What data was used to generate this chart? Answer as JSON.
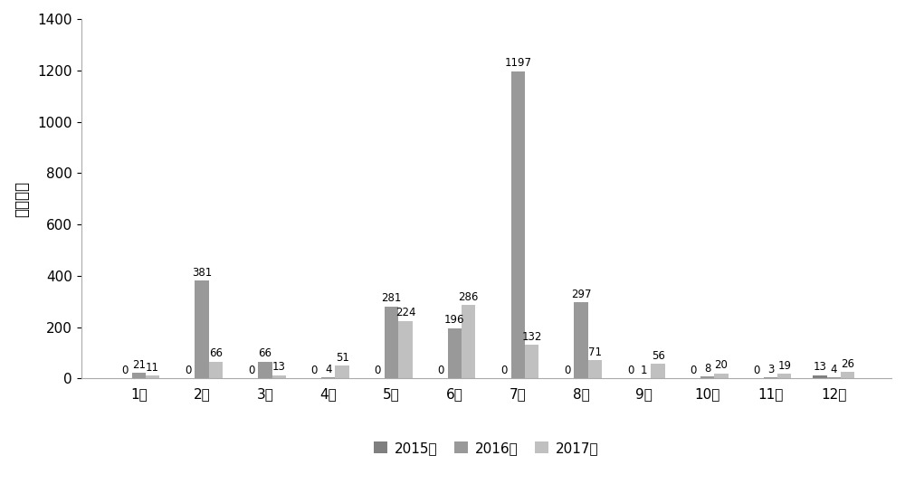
{
  "months": [
    "1月",
    "2月",
    "3月",
    "4月",
    "5月",
    "6月",
    "7月",
    "8月",
    "9月",
    "10月",
    "11月",
    "12月"
  ],
  "series": {
    "2015年": [
      0,
      0,
      0,
      0,
      0,
      0,
      0,
      0,
      0,
      0,
      0,
      13
    ],
    "2016年": [
      21,
      381,
      66,
      4,
      281,
      196,
      1197,
      297,
      1,
      8,
      3,
      4
    ],
    "2017年": [
      11,
      66,
      13,
      51,
      224,
      286,
      132,
      71,
      56,
      20,
      19,
      26
    ]
  },
  "bar_colors": {
    "2015年": "#7f7f7f",
    "2016年": "#999999",
    "2017年": "#c0c0c0"
  },
  "ylabel": "热点个数",
  "ylim": [
    0,
    1400
  ],
  "yticks": [
    0,
    200,
    400,
    600,
    800,
    1000,
    1200,
    1400
  ],
  "legend_labels": [
    "2015年",
    "2016年",
    "2017年"
  ],
  "bar_width": 0.22,
  "ylabel_fontsize": 12,
  "tick_fontsize": 11,
  "annot_fontsize": 8.5,
  "legend_fontsize": 11,
  "background_color": "#ffffff"
}
